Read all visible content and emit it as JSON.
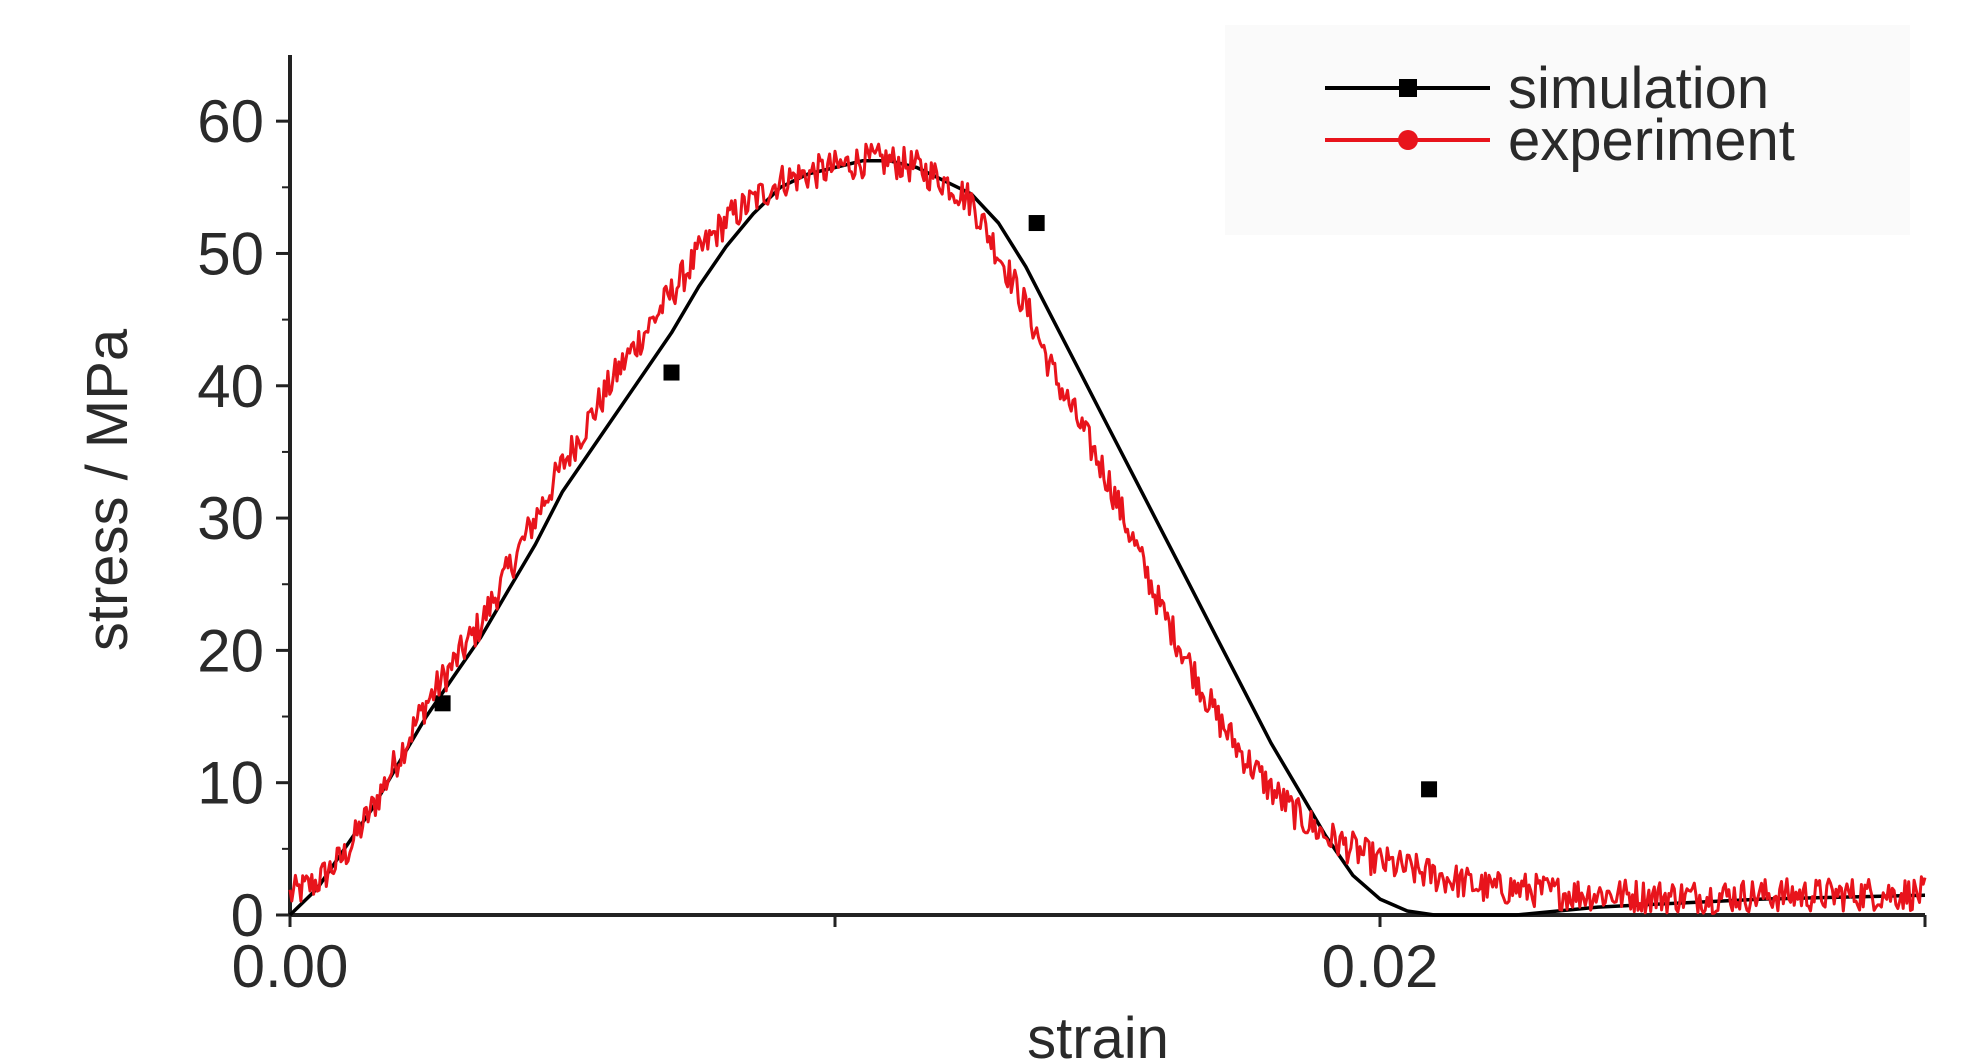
{
  "chart_data": {
    "type": "line",
    "title": "",
    "xlabel": "strain",
    "ylabel": "stress / MPa",
    "xlim": [
      0,
      0.03
    ],
    "ylim": [
      0,
      65
    ],
    "x_ticks": [
      0,
      0.01,
      0.02,
      0.03
    ],
    "x_tick_labels": [
      "0.00",
      "",
      "0.02",
      ""
    ],
    "y_ticks": [
      0,
      10,
      20,
      30,
      40,
      50,
      60
    ],
    "y_tick_labels": [
      "0",
      "10",
      "20",
      "30",
      "40",
      "50",
      "60"
    ],
    "grid": false,
    "legend_position": "top-right",
    "series": [
      {
        "name": "simulation",
        "color": "#000000",
        "marker": "square",
        "x": [
          0.0,
          0.0005,
          0.001,
          0.0015,
          0.002,
          0.0025,
          0.003,
          0.0035,
          0.004,
          0.0045,
          0.005,
          0.0055,
          0.006,
          0.0065,
          0.007,
          0.0075,
          0.008,
          0.0085,
          0.009,
          0.0095,
          0.01,
          0.0105,
          0.011,
          0.0115,
          0.012,
          0.0125,
          0.013,
          0.0135,
          0.014,
          0.0145,
          0.015,
          0.0155,
          0.016,
          0.0165,
          0.017,
          0.0175,
          0.018,
          0.0185,
          0.019,
          0.0195,
          0.02,
          0.0205,
          0.021,
          0.0215,
          0.022,
          0.0225,
          0.023,
          0.0235,
          0.024,
          0.025,
          0.026,
          0.027,
          0.028,
          0.029,
          0.03
        ],
        "y": [
          0,
          2,
          5,
          8,
          11.5,
          15,
          18,
          21,
          24.5,
          28,
          32,
          35,
          38,
          41,
          44,
          47.5,
          50.5,
          53,
          55,
          56,
          56.5,
          57,
          57,
          56.5,
          55.5,
          54.5,
          52.3,
          49,
          45,
          41,
          37,
          33,
          29,
          25,
          21,
          17,
          13,
          9.5,
          6,
          3,
          1.2,
          0.3,
          0,
          0,
          0,
          0,
          0.2,
          0.4,
          0.6,
          0.8,
          1.0,
          1.2,
          1.3,
          1.4,
          1.5
        ],
        "marker_x": [
          0.0028,
          0.007,
          0.0137,
          0.0209
        ],
        "marker_y": [
          16,
          41,
          52.3,
          9.5
        ]
      },
      {
        "name": "experiment",
        "color": "#e8141c",
        "marker": "circle",
        "x": [
          0.0,
          0.0005,
          0.001,
          0.0015,
          0.002,
          0.0025,
          0.003,
          0.0035,
          0.004,
          0.0045,
          0.005,
          0.0055,
          0.006,
          0.0065,
          0.007,
          0.0075,
          0.008,
          0.0085,
          0.009,
          0.0095,
          0.01,
          0.0105,
          0.011,
          0.0115,
          0.012,
          0.0125,
          0.013,
          0.0135,
          0.014,
          0.0145,
          0.015,
          0.0155,
          0.016,
          0.0165,
          0.017,
          0.0175,
          0.018,
          0.0185,
          0.019,
          0.0195,
          0.02,
          0.0205,
          0.021,
          0.0215,
          0.022,
          0.0225,
          0.023,
          0.0235,
          0.024,
          0.025,
          0.026,
          0.027,
          0.028,
          0.029,
          0.03
        ],
        "y": [
          1.5,
          2.5,
          4.5,
          8,
          12,
          16,
          19,
          22,
          26,
          30,
          34,
          37.5,
          41,
          44,
          47,
          50,
          52.5,
          54,
          55.5,
          56,
          56.5,
          57,
          57,
          56.5,
          55.5,
          54,
          50,
          46,
          41,
          37,
          33,
          28,
          23,
          19,
          15,
          12,
          9.5,
          7.5,
          6,
          5,
          4,
          3.5,
          3,
          2.5,
          2,
          2,
          1.8,
          1.6,
          1.6,
          1.4,
          1.4,
          1.5,
          1.5,
          1.6,
          1.6
        ]
      }
    ]
  }
}
